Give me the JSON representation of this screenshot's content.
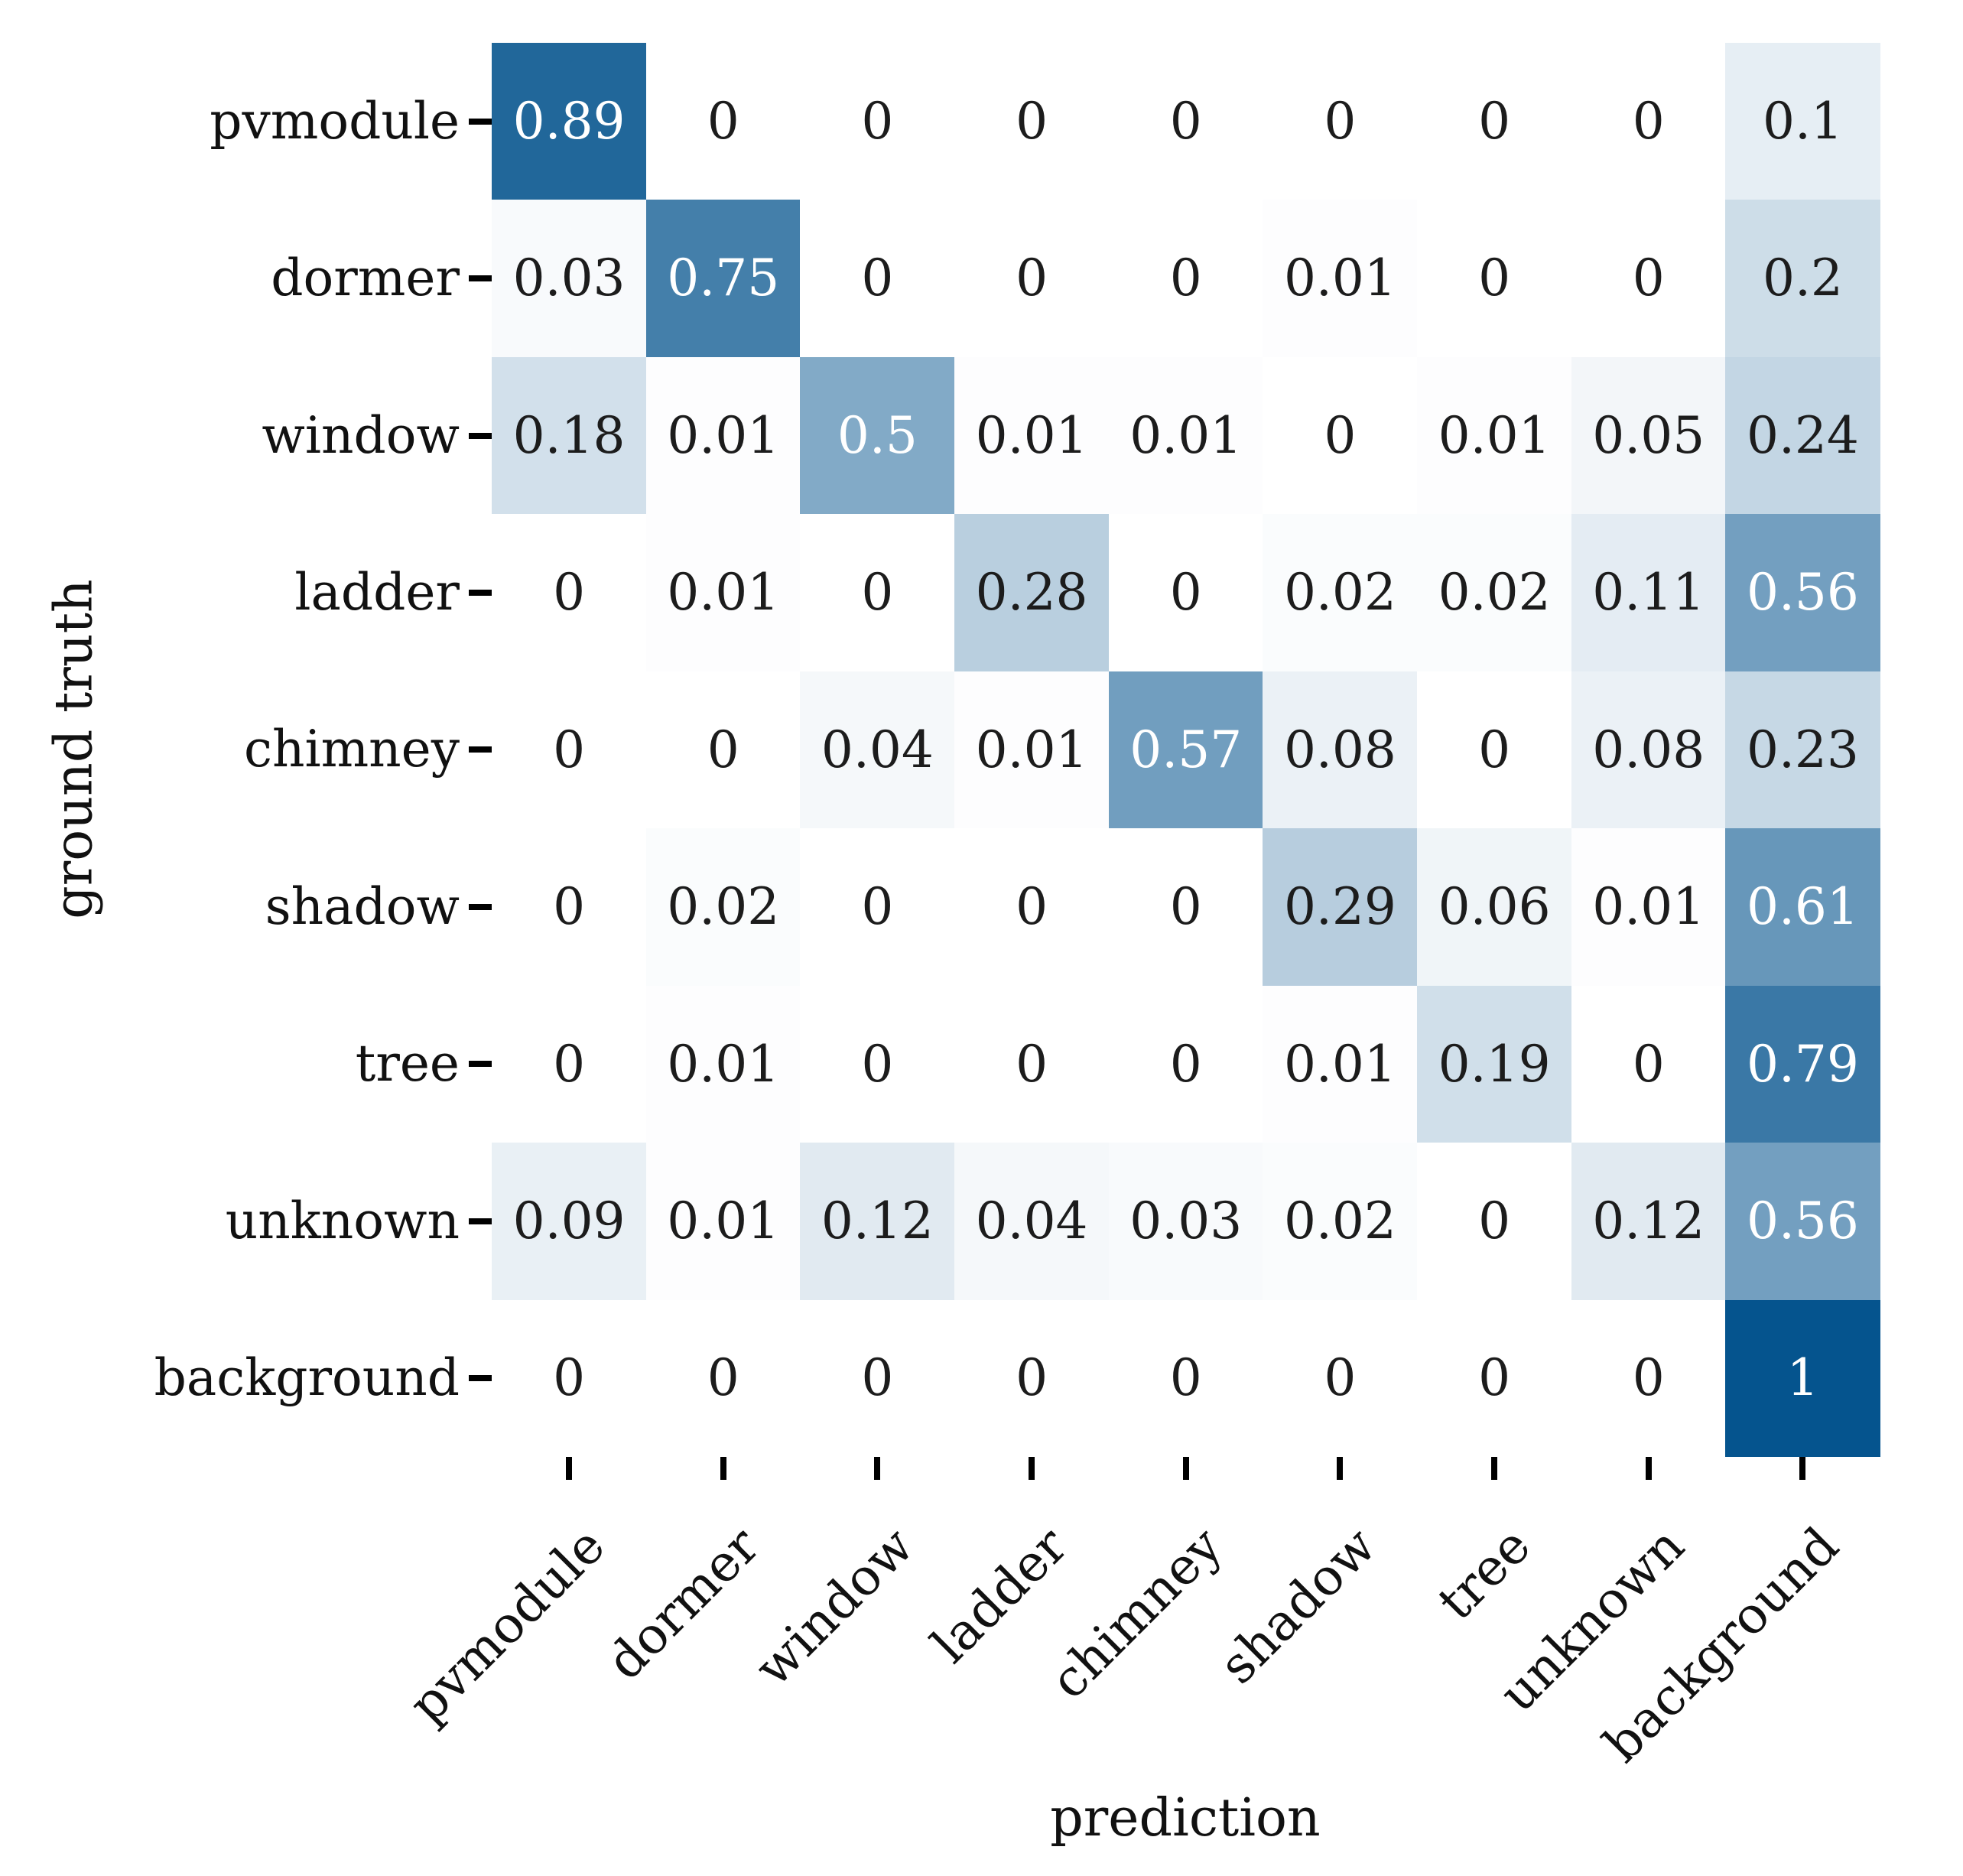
{
  "chart_data": {
    "type": "heatmap",
    "title": "",
    "xlabel": "prediction",
    "ylabel": "ground truth",
    "x_categories": [
      "pvmodule",
      "dormer",
      "window",
      "ladder",
      "chimney",
      "shadow",
      "tree",
      "unknown",
      "background"
    ],
    "y_categories": [
      "pvmodule",
      "dormer",
      "window",
      "ladder",
      "chimney",
      "shadow",
      "tree",
      "unknown",
      "background"
    ],
    "matrix": [
      [
        0.89,
        0,
        0,
        0,
        0,
        0,
        0,
        0,
        0.1
      ],
      [
        0.03,
        0.75,
        0,
        0,
        0,
        0.01,
        0,
        0,
        0.2
      ],
      [
        0.18,
        0.01,
        0.5,
        0.01,
        0.01,
        0,
        0.01,
        0.05,
        0.24
      ],
      [
        0,
        0.01,
        0,
        0.28,
        0,
        0.02,
        0.02,
        0.11,
        0.56
      ],
      [
        0,
        0,
        0.04,
        0.01,
        0.57,
        0.08,
        0,
        0.08,
        0.23
      ],
      [
        0,
        0.02,
        0,
        0,
        0,
        0.29,
        0.06,
        0.01,
        0.61
      ],
      [
        0,
        0.01,
        0,
        0,
        0,
        0.01,
        0.19,
        0,
        0.79
      ],
      [
        0.09,
        0.01,
        0.12,
        0.04,
        0.03,
        0.02,
        0,
        0.12,
        0.56
      ],
      [
        0,
        0,
        0,
        0,
        0,
        0,
        0,
        0,
        1
      ]
    ],
    "vmin": 0,
    "vmax": 1,
    "grid": false,
    "legend": "none",
    "annotation_light_threshold": 0.5,
    "colors": {
      "cmap_low": "#ffffff",
      "cmap_high": "#05548e",
      "annotation_dark": "#1c1c1c",
      "annotation_light": "#ffffff",
      "tick": "#000000"
    }
  }
}
